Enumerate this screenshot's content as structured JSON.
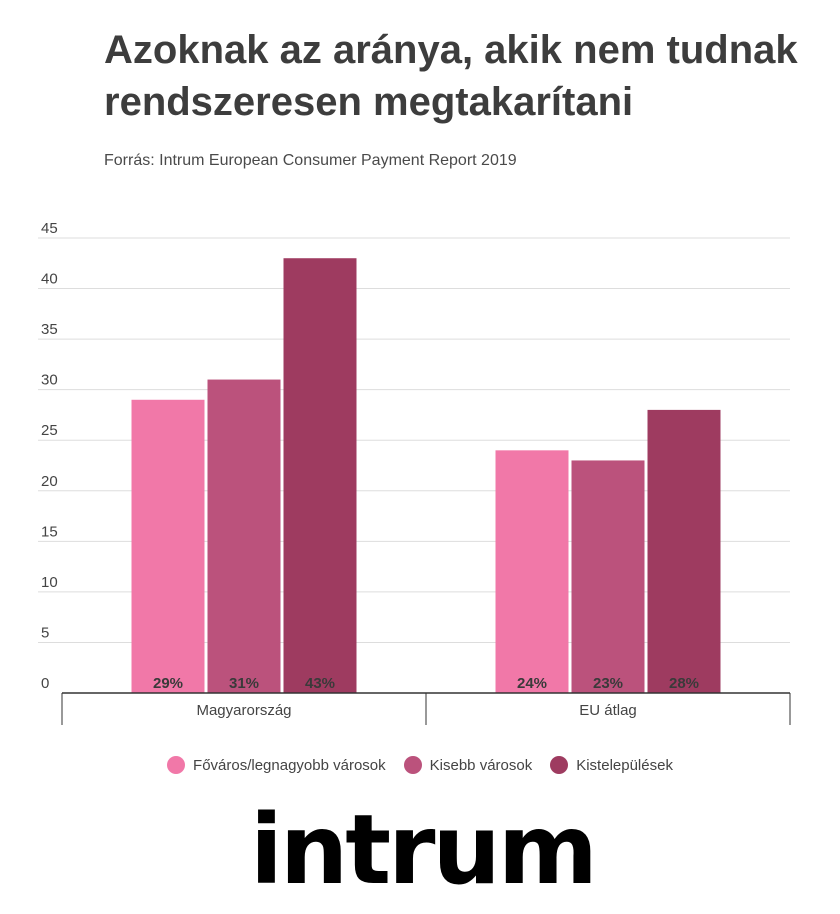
{
  "title": "Azoknak az aránya, akik nem tudnak rendszeresen megtakarítani",
  "subtitle": "Forrás: Intrum European Consumer Payment Report 2019",
  "logo": "intrum",
  "chart_data": {
    "type": "bar",
    "categories": [
      "Magyarország",
      "EU átlag"
    ],
    "series": [
      {
        "name": "Főváros/legnagyobb városok",
        "values": [
          29,
          24
        ],
        "labels": [
          "29%",
          "24%"
        ],
        "color": "#f178a8"
      },
      {
        "name": "Kisebb városok",
        "values": [
          31,
          23
        ],
        "labels": [
          "31%",
          "23%"
        ],
        "color": "#bb527c"
      },
      {
        "name": "Kistelepülések",
        "values": [
          43,
          28
        ],
        "labels": [
          "43%",
          "28%"
        ],
        "color": "#9e3b60"
      }
    ],
    "yticks": [
      "0",
      "5",
      "10",
      "15",
      "20",
      "25",
      "30",
      "35",
      "40",
      "45"
    ],
    "ylim": [
      0,
      45
    ],
    "grid": true,
    "legend": "bottom"
  }
}
